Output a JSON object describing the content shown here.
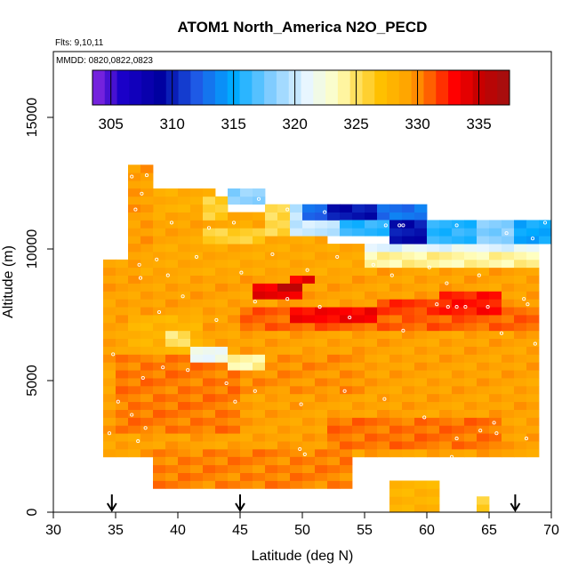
{
  "chart_data": {
    "type": "heatmap",
    "title": "ATOM1 North_America N2O_PECD",
    "flights_note": "Flts: 9,10,11",
    "dates_note": "MMDD: 0820,0822,0823",
    "xlabel": "Latitude (deg N)",
    "ylabel": "Altitude (m)",
    "xlim": [
      30,
      70
    ],
    "ylim": [
      0,
      17500
    ],
    "x_ticks": [
      30,
      35,
      40,
      45,
      50,
      55,
      60,
      65,
      70
    ],
    "y_ticks": [
      0,
      5000,
      10000,
      15000
    ],
    "colorbar": {
      "min": 303.5,
      "max": 337.5,
      "ticks": [
        305,
        310,
        315,
        320,
        325,
        330,
        335
      ],
      "stops": [
        {
          "v": 303.5,
          "c": "#8a2be2"
        },
        {
          "v": 306,
          "c": "#1a00c8"
        },
        {
          "v": 309,
          "c": "#0000a0"
        },
        {
          "v": 312,
          "c": "#1e5ae6"
        },
        {
          "v": 315,
          "c": "#00aaff"
        },
        {
          "v": 318,
          "c": "#80ccff"
        },
        {
          "v": 321,
          "c": "#e8f6ff"
        },
        {
          "v": 323.5,
          "c": "#ffffc0"
        },
        {
          "v": 325,
          "c": "#ffe060"
        },
        {
          "v": 327,
          "c": "#ffc000"
        },
        {
          "v": 329.5,
          "c": "#ffa000"
        },
        {
          "v": 331,
          "c": "#ff6000"
        },
        {
          "v": 333,
          "c": "#ff0000"
        },
        {
          "v": 335,
          "c": "#c80000"
        },
        {
          "v": 337.5,
          "c": "#a01010"
        }
      ]
    },
    "grid_cell_lat": 1,
    "grid_cell_alt": 300,
    "base_field": {
      "lat_min": 34,
      "lat_max": 69,
      "alt_min": 2100,
      "alt_max": 9600,
      "value": 329.2
    },
    "regions": [
      {
        "lat": [
          38,
          54
        ],
        "alt": [
          900,
          2400
        ],
        "value": 330.2
      },
      {
        "lat": [
          57,
          61
        ],
        "alt": [
          0,
          1200
        ],
        "value": 328.0
      },
      {
        "lat": [
          64,
          65
        ],
        "alt": [
          0,
          600
        ],
        "value": 326.0
      },
      {
        "lat": [
          52,
          66
        ],
        "alt": [
          2400,
          3600
        ],
        "value": 330.6
      },
      {
        "lat": [
          35,
          45
        ],
        "alt": [
          3000,
          6000
        ],
        "value": 330.4
      },
      {
        "lat": [
          45,
          55
        ],
        "alt": [
          4500,
          6000
        ],
        "value": 329.8
      },
      {
        "lat": [
          36,
          42
        ],
        "alt": [
          6000,
          7500
        ],
        "value": 328.0
      },
      {
        "lat": [
          39,
          41
        ],
        "alt": [
          6300,
          6900
        ],
        "value": 324.8
      },
      {
        "lat": [
          41,
          44
        ],
        "alt": [
          5700,
          6300
        ],
        "value": 321.5
      },
      {
        "lat": [
          44,
          47
        ],
        "alt": [
          5400,
          6000
        ],
        "value": 324.0
      },
      {
        "lat": [
          45,
          69
        ],
        "alt": [
          6900,
          7800
        ],
        "value": 331.0
      },
      {
        "lat": [
          49,
          56
        ],
        "alt": [
          7200,
          7800
        ],
        "value": 333.2
      },
      {
        "lat": [
          56,
          62
        ],
        "alt": [
          7500,
          8100
        ],
        "value": 331.8
      },
      {
        "lat": [
          61,
          66
        ],
        "alt": [
          7500,
          8400
        ],
        "value": 332.6
      },
      {
        "lat": [
          46,
          50
        ],
        "alt": [
          8100,
          8700
        ],
        "value": 333.8
      },
      {
        "lat": [
          48,
          50
        ],
        "alt": [
          8400,
          8700
        ],
        "value": 335.5
      },
      {
        "lat": [
          49,
          51
        ],
        "alt": [
          8700,
          9000
        ],
        "value": 333.6
      },
      {
        "lat": [
          37,
          56
        ],
        "alt": [
          9000,
          10200
        ],
        "value": 328.8
      },
      {
        "lat": [
          55,
          69
        ],
        "alt": [
          9300,
          9900
        ],
        "value": 324.0
      },
      {
        "lat": [
          55,
          69
        ],
        "alt": [
          9900,
          10200
        ],
        "value": 321.0
      },
      {
        "lat": [
          36,
          52
        ],
        "alt": [
          10200,
          11400
        ],
        "value": 329.0
      },
      {
        "lat": [
          38,
          43
        ],
        "alt": [
          11400,
          12300
        ],
        "value": 328.4
      },
      {
        "lat": [
          42,
          44
        ],
        "alt": [
          11100,
          12000
        ],
        "value": 326.0
      },
      {
        "lat": [
          42,
          47
        ],
        "alt": [
          10200,
          10800
        ],
        "value": 326.0
      },
      {
        "lat": [
          44,
          47
        ],
        "alt": [
          11700,
          12300
        ],
        "value": 318.5
      },
      {
        "lat": [
          47,
          49
        ],
        "alt": [
          10500,
          11700
        ],
        "value": 325.5
      },
      {
        "lat": [
          49,
          53
        ],
        "alt": [
          10500,
          11700
        ],
        "value": 320.0
      },
      {
        "lat": [
          50,
          52
        ],
        "alt": [
          11100,
          11700
        ],
        "value": 312.5
      },
      {
        "lat": [
          52,
          56
        ],
        "alt": [
          11100,
          11700
        ],
        "value": 309.5
      },
      {
        "lat": [
          56,
          60
        ],
        "alt": [
          11100,
          11700
        ],
        "value": 313.0
      },
      {
        "lat": [
          53,
          57
        ],
        "alt": [
          10500,
          11100
        ],
        "value": 316.0
      },
      {
        "lat": [
          57,
          60
        ],
        "alt": [
          10200,
          11100
        ],
        "value": 309.5
      },
      {
        "lat": [
          60,
          64
        ],
        "alt": [
          10200,
          11100
        ],
        "value": 316.0
      },
      {
        "lat": [
          64,
          67
        ],
        "alt": [
          10200,
          11100
        ],
        "value": 318.0
      },
      {
        "lat": [
          67,
          70
        ],
        "alt": [
          10200,
          11100
        ],
        "value": 315.0
      },
      {
        "lat": [
          36,
          38
        ],
        "alt": [
          12300,
          13000
        ],
        "value": 329.4
      },
      {
        "lat": [
          36,
          38
        ],
        "alt": [
          9600,
          12300
        ],
        "value": 329.4
      }
    ],
    "sample_points": [
      [
        37.5,
        12800
      ],
      [
        36.3,
        12750
      ],
      [
        37.1,
        12100
      ],
      [
        36.6,
        11500
      ],
      [
        39.5,
        11000
      ],
      [
        42.5,
        10800
      ],
      [
        44.5,
        11000
      ],
      [
        46.5,
        11900
      ],
      [
        48.8,
        11500
      ],
      [
        51.8,
        11400
      ],
      [
        56.7,
        10900
      ],
      [
        57.8,
        10900
      ],
      [
        58.1,
        10900
      ],
      [
        62.4,
        10900
      ],
      [
        66.4,
        10600
      ],
      [
        68.5,
        10400
      ],
      [
        69.5,
        11000
      ],
      [
        35.1,
        10000
      ],
      [
        36.9,
        9400
      ],
      [
        38.3,
        9600
      ],
      [
        39.2,
        9000
      ],
      [
        41.5,
        9700
      ],
      [
        45.1,
        9100
      ],
      [
        47.6,
        9800
      ],
      [
        50.4,
        9200
      ],
      [
        52.8,
        9700
      ],
      [
        55.7,
        9400
      ],
      [
        57.2,
        9000
      ],
      [
        60.2,
        9300
      ],
      [
        61.6,
        8700
      ],
      [
        64.2,
        9000
      ],
      [
        67.8,
        8100
      ],
      [
        37.0,
        8900
      ],
      [
        40.4,
        8200
      ],
      [
        43.1,
        7300
      ],
      [
        46.2,
        8000
      ],
      [
        48.8,
        8100
      ],
      [
        51.4,
        7800
      ],
      [
        53.8,
        7400
      ],
      [
        58.1,
        6900
      ],
      [
        60.8,
        7900
      ],
      [
        61.7,
        7800
      ],
      [
        62.4,
        7800
      ],
      [
        63.1,
        7800
      ],
      [
        64.9,
        7800
      ],
      [
        68.1,
        7900
      ],
      [
        66.0,
        6800
      ],
      [
        68.7,
        6400
      ],
      [
        34.8,
        6000
      ],
      [
        37.2,
        5100
      ],
      [
        38.8,
        5500
      ],
      [
        40.8,
        5400
      ],
      [
        43.9,
        4900
      ],
      [
        44.6,
        4200
      ],
      [
        46.2,
        4600
      ],
      [
        49.9,
        4100
      ],
      [
        53.4,
        4600
      ],
      [
        56.6,
        4300
      ],
      [
        59.8,
        3600
      ],
      [
        62.4,
        2800
      ],
      [
        64.3,
        3100
      ],
      [
        65.4,
        3400
      ],
      [
        68.0,
        2800
      ],
      [
        35.2,
        4200
      ],
      [
        36.3,
        3700
      ],
      [
        37.4,
        3200
      ],
      [
        36.8,
        2700
      ],
      [
        49.8,
        2400
      ],
      [
        50.2,
        2200
      ],
      [
        55.5,
        2000
      ],
      [
        58.8,
        1900
      ],
      [
        59.1,
        1800
      ],
      [
        62.0,
        2100
      ],
      [
        63.8,
        2000
      ],
      [
        65.6,
        3000
      ],
      [
        34.5,
        3000
      ],
      [
        38.5,
        7600
      ]
    ],
    "flight_markers_lat": [
      34.7,
      45.0,
      67.1
    ]
  }
}
